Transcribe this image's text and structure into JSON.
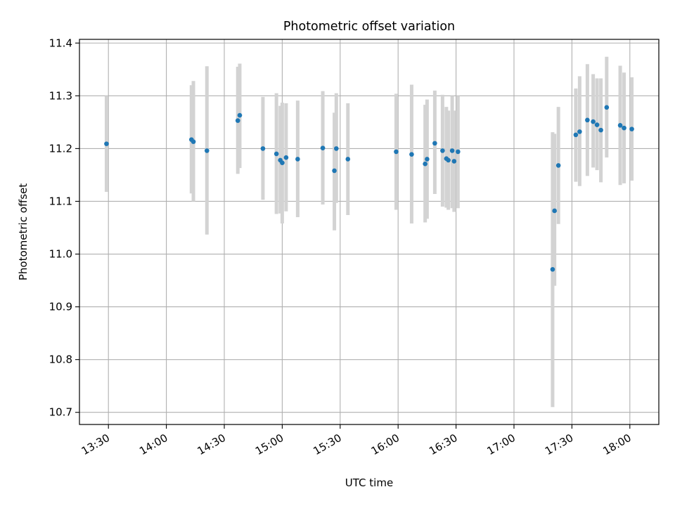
{
  "chart_data": {
    "type": "scatter",
    "title": "Photometric offset variation",
    "xlabel": "UTC time",
    "ylabel": "Photometric offset",
    "xlim": [
      "13:15",
      "18:15"
    ],
    "ylim": [
      10.677,
      11.407
    ],
    "grid": true,
    "x_ticks": [
      "13:30",
      "14:00",
      "14:30",
      "15:00",
      "15:30",
      "16:00",
      "16:30",
      "17:00",
      "17:30",
      "18:00"
    ],
    "y_ticks": [
      10.7,
      10.8,
      10.9,
      11.0,
      11.1,
      11.2,
      11.3,
      11.4
    ],
    "y_tick_labels": [
      "10.7",
      "10.8",
      "10.9",
      "11.0",
      "11.1",
      "11.2",
      "11.3",
      "11.4"
    ],
    "colors": {
      "points": "#1f77b4",
      "errorbars": "#d3d3d3",
      "grid": "#b0b0b0"
    },
    "points": [
      {
        "x": "13:29",
        "y": 11.209,
        "lo": 11.118,
        "hi": 11.3
      },
      {
        "x": "14:13",
        "y": 11.217,
        "lo": 11.115,
        "hi": 11.32
      },
      {
        "x": "14:14",
        "y": 11.213,
        "lo": 11.1,
        "hi": 11.328
      },
      {
        "x": "14:21",
        "y": 11.196,
        "lo": 11.037,
        "hi": 11.356
      },
      {
        "x": "14:37",
        "y": 11.253,
        "lo": 11.152,
        "hi": 11.355
      },
      {
        "x": "14:38",
        "y": 11.263,
        "lo": 11.163,
        "hi": 11.361
      },
      {
        "x": "14:50",
        "y": 11.2,
        "lo": 11.103,
        "hi": 11.298
      },
      {
        "x": "14:57",
        "y": 11.19,
        "lo": 11.076,
        "hi": 11.305
      },
      {
        "x": "14:59",
        "y": 11.178,
        "lo": 11.077,
        "hi": 11.281
      },
      {
        "x": "15:00",
        "y": 11.173,
        "lo": 11.058,
        "hi": 11.287
      },
      {
        "x": "15:02",
        "y": 11.183,
        "lo": 11.081,
        "hi": 11.286
      },
      {
        "x": "15:08",
        "y": 11.18,
        "lo": 11.07,
        "hi": 11.291
      },
      {
        "x": "15:21",
        "y": 11.201,
        "lo": 11.094,
        "hi": 11.309
      },
      {
        "x": "15:27",
        "y": 11.158,
        "lo": 11.045,
        "hi": 11.268
      },
      {
        "x": "15:28",
        "y": 11.2,
        "lo": 11.097,
        "hi": 11.305
      },
      {
        "x": "15:34",
        "y": 11.18,
        "lo": 11.074,
        "hi": 11.286
      },
      {
        "x": "15:59",
        "y": 11.194,
        "lo": 11.084,
        "hi": 11.304
      },
      {
        "x": "16:07",
        "y": 11.189,
        "lo": 11.058,
        "hi": 11.321
      },
      {
        "x": "16:14",
        "y": 11.171,
        "lo": 11.06,
        "hi": 11.283
      },
      {
        "x": "16:15",
        "y": 11.18,
        "lo": 11.067,
        "hi": 11.293
      },
      {
        "x": "16:19",
        "y": 11.21,
        "lo": 11.114,
        "hi": 11.31
      },
      {
        "x": "16:23",
        "y": 11.196,
        "lo": 11.09,
        "hi": 11.302
      },
      {
        "x": "16:25",
        "y": 11.181,
        "lo": 11.088,
        "hi": 11.279
      },
      {
        "x": "16:26",
        "y": 11.178,
        "lo": 11.084,
        "hi": 11.272
      },
      {
        "x": "16:28",
        "y": 11.196,
        "lo": 11.087,
        "hi": 11.3
      },
      {
        "x": "16:29",
        "y": 11.176,
        "lo": 11.08,
        "hi": 11.272
      },
      {
        "x": "16:31",
        "y": 11.194,
        "lo": 11.087,
        "hi": 11.3
      },
      {
        "x": "17:20",
        "y": 10.971,
        "lo": 10.71,
        "hi": 11.231
      },
      {
        "x": "17:21",
        "y": 11.082,
        "lo": 10.94,
        "hi": 11.228
      },
      {
        "x": "17:23",
        "y": 11.168,
        "lo": 11.057,
        "hi": 11.279
      },
      {
        "x": "17:32",
        "y": 11.226,
        "lo": 11.137,
        "hi": 11.314
      },
      {
        "x": "17:34",
        "y": 11.232,
        "lo": 11.129,
        "hi": 11.337
      },
      {
        "x": "17:38",
        "y": 11.254,
        "lo": 11.148,
        "hi": 11.36
      },
      {
        "x": "17:41",
        "y": 11.251,
        "lo": 11.164,
        "hi": 11.341
      },
      {
        "x": "17:43",
        "y": 11.245,
        "lo": 11.159,
        "hi": 11.333
      },
      {
        "x": "17:45",
        "y": 11.235,
        "lo": 11.136,
        "hi": 11.333
      },
      {
        "x": "17:48",
        "y": 11.278,
        "lo": 11.183,
        "hi": 11.374
      },
      {
        "x": "17:55",
        "y": 11.244,
        "lo": 11.131,
        "hi": 11.357
      },
      {
        "x": "17:57",
        "y": 11.239,
        "lo": 11.134,
        "hi": 11.344
      },
      {
        "x": "18:01",
        "y": 11.237,
        "lo": 11.139,
        "hi": 11.335
      }
    ]
  }
}
